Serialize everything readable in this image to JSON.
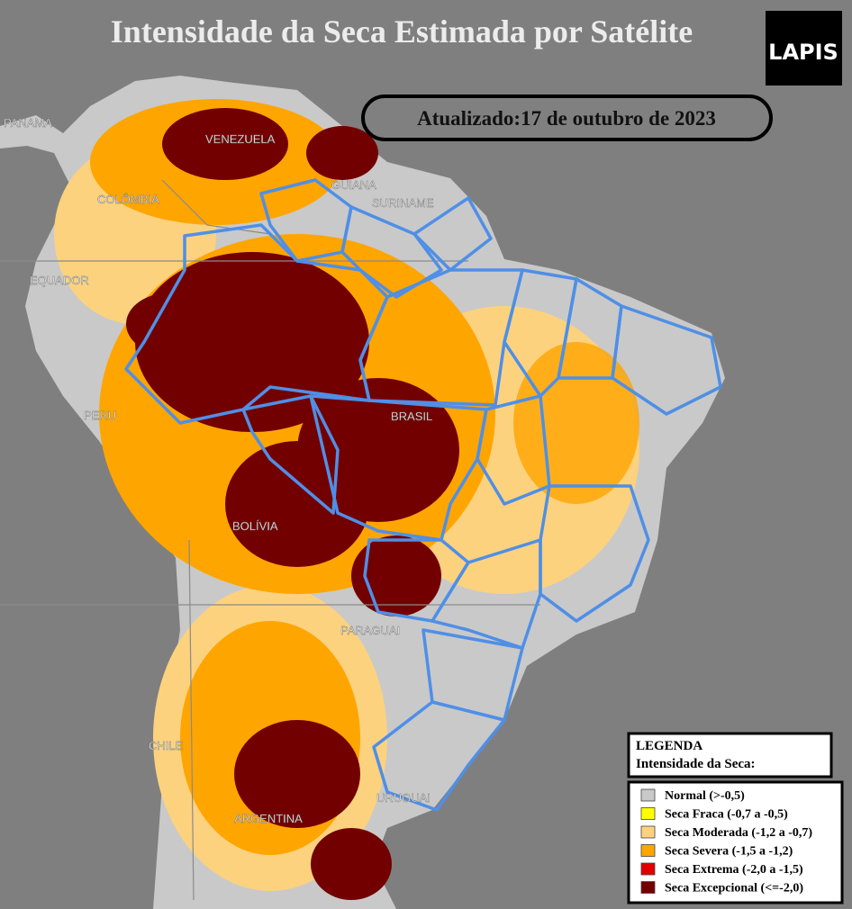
{
  "header": {
    "title": "Intensidade da Seca Estimada por Satélite",
    "logo": "LAPIS",
    "updated": "Atualizado:17 de outubro de 2023"
  },
  "countries": [
    "PANAMÁ",
    "VENEZUELA",
    "COLÔMBIA",
    "GUIANA",
    "SURINAME",
    "EQUADOR",
    "PERU",
    "BRASIL",
    "BOLÍVIA",
    "PARAGUAI",
    "CHILE",
    "URUGUAI",
    "ARGENTINA"
  ],
  "legend": {
    "title": "LEGENDA",
    "subtitle": "Intensidade da Seca:",
    "items": [
      {
        "label": "Normal (>-0,5)",
        "color": "#c8c8c8"
      },
      {
        "label": "Seca Fraca (-0,7 a -0,5)",
        "color": "#ffff00"
      },
      {
        "label": "Seca Moderada (-1,2 a -0,7)",
        "color": "#fcd27f"
      },
      {
        "label": "Seca Severa (-1,5 a -1,2)",
        "color": "#ffa500"
      },
      {
        "label": "Seca Extrema (-2,0 a -1,5)",
        "color": "#e00000"
      },
      {
        "label": "Seca Excepcional (<=-2,0)",
        "color": "#730000"
      }
    ]
  }
}
